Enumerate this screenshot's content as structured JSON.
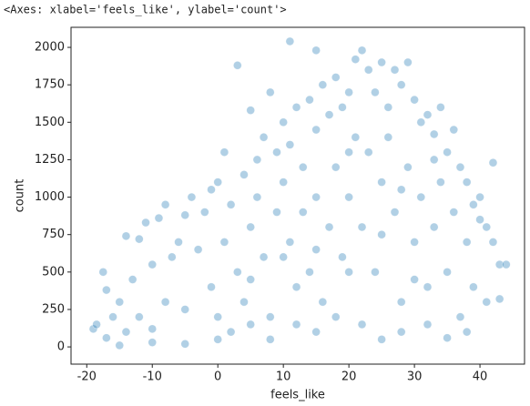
{
  "output_text": "<Axes: xlabel='feels_like', ylabel='count'>",
  "chart_data": {
    "type": "scatter",
    "xlabel": "feels_like",
    "ylabel": "count",
    "color": "#1f77b4",
    "xlim": [
      -22.4,
      46.8
    ],
    "ylim": [
      -115,
      2134
    ],
    "xticks": [
      -20,
      -10,
      0,
      10,
      20,
      30,
      40
    ],
    "yticks": [
      0,
      250,
      500,
      750,
      1000,
      1250,
      1500,
      1750,
      2000
    ],
    "x": [
      -19,
      -18.5,
      -17.5,
      -17,
      -17,
      -16,
      -15,
      -14,
      -14,
      -13,
      -12,
      -12,
      -11,
      -10,
      -10,
      -9,
      -8,
      -8,
      -7,
      -6,
      -5,
      -5,
      -4,
      -3,
      -2,
      -1,
      -1,
      0,
      0,
      1,
      1,
      2,
      3,
      3,
      4,
      4,
      5,
      5,
      6,
      6,
      7,
      7,
      8,
      8,
      9,
      9,
      10,
      10,
      11,
      11,
      11,
      12,
      12,
      13,
      13,
      14,
      14,
      15,
      15,
      15,
      16,
      16,
      17,
      17,
      18,
      18,
      19,
      19,
      20,
      20,
      21,
      21,
      22,
      22,
      23,
      23,
      24,
      24,
      25,
      25,
      26,
      26,
      27,
      27,
      28,
      28,
      29,
      29,
      30,
      30,
      31,
      31,
      32,
      32,
      33,
      33,
      34,
      34,
      35,
      35,
      36,
      36,
      37,
      37,
      38,
      38,
      39,
      39,
      40,
      40,
      41,
      41,
      42,
      42,
      43,
      43,
      44,
      0,
      2,
      5,
      8,
      12,
      15,
      18,
      22,
      25,
      28,
      32,
      35,
      38,
      -5,
      -10,
      -15,
      10,
      20,
      30,
      25,
      5,
      15,
      20,
      28,
      33
    ],
    "values": [
      120,
      150,
      500,
      380,
      60,
      200,
      300,
      740,
      100,
      450,
      720,
      200,
      830,
      550,
      120,
      860,
      950,
      300,
      600,
      700,
      880,
      250,
      1000,
      650,
      900,
      1050,
      400,
      1100,
      200,
      1300,
      700,
      950,
      1880,
      500,
      1150,
      300,
      1580,
      800,
      1250,
      1000,
      1400,
      600,
      1700,
      200,
      1300,
      900,
      1500,
      1100,
      2040,
      1350,
      700,
      1600,
      400,
      1200,
      900,
      1650,
      500,
      1980,
      1450,
      1000,
      1750,
      300,
      1550,
      800,
      1800,
      1200,
      1600,
      600,
      1700,
      1000,
      1920,
      1400,
      1980,
      800,
      1850,
      1300,
      1700,
      500,
      1900,
      1100,
      1600,
      1400,
      1850,
      900,
      1750,
      300,
      1900,
      1200,
      1650,
      700,
      1500,
      1000,
      1550,
      400,
      1420,
      800,
      1600,
      1100,
      1300,
      500,
      1450,
      900,
      1200,
      200,
      1100,
      700,
      950,
      400,
      850,
      1000,
      800,
      300,
      700,
      1230,
      550,
      320,
      550,
      50,
      100,
      150,
      50,
      150,
      100,
      200,
      150,
      50,
      100,
      150,
      60,
      100,
      20,
      30,
      10,
      600,
      500,
      450,
      750,
      450,
      650,
      1300,
      1050,
      1250
    ]
  }
}
